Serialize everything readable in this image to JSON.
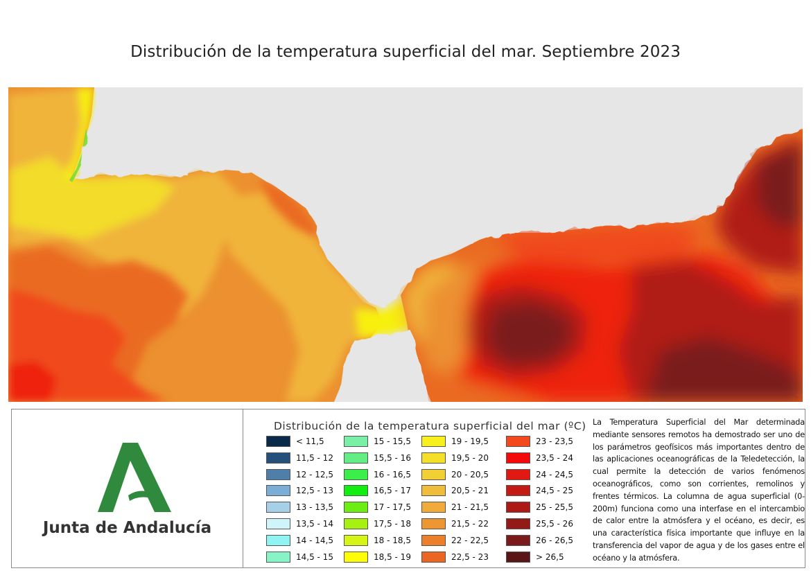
{
  "title": "Distribución de la temperatura superficial del mar. Septiembre 2023",
  "map": {
    "land_color": "#e6e6e6",
    "sea_colors": {
      "cool_yellow": "#f7f010",
      "yellow": "#f3dc2c",
      "light_orange": "#f0b43a",
      "orange": "#ec9030",
      "dark_orange": "#ea6a22",
      "red_orange": "#f04a1c",
      "red": "#ee2010",
      "deep_red": "#b01a14",
      "darkest_red": "#7a1a1a",
      "green_edge": "#6ed834"
    }
  },
  "logo": {
    "name": "Junta de Andalucía",
    "green": "#2f8a3e"
  },
  "legend": {
    "title": "Distribución de la temperatura superficial del mar (ºC)",
    "columns": [
      [
        {
          "label": "< 11,5",
          "color": "#0a2a4a"
        },
        {
          "label": "11,5 - 12",
          "color": "#24507a"
        },
        {
          "label": "12 - 12,5",
          "color": "#4f7ea8"
        },
        {
          "label": "12,5 - 13",
          "color": "#7aaed6"
        },
        {
          "label": "13 - 13,5",
          "color": "#a6cfe8"
        },
        {
          "label": "13,5 - 14",
          "color": "#cff5fb"
        },
        {
          "label": "14 - 14,5",
          "color": "#8ff4f2"
        },
        {
          "label": "14,5 - 15",
          "color": "#86f4c6"
        }
      ],
      [
        {
          "label": "15 - 15,5",
          "color": "#7af0a6"
        },
        {
          "label": "15,5 - 16",
          "color": "#62ee84"
        },
        {
          "label": "16 - 16,5",
          "color": "#3cee4a"
        },
        {
          "label": "16,5 - 17",
          "color": "#12ee12"
        },
        {
          "label": "17 - 17,5",
          "color": "#6cee12"
        },
        {
          "label": "17,5 - 18",
          "color": "#a6f012"
        },
        {
          "label": "18 - 18,5",
          "color": "#d6f416"
        },
        {
          "label": "18,5 - 19",
          "color": "#fdfd06"
        }
      ],
      [
        {
          "label": "19 - 19,5",
          "color": "#f8f01e"
        },
        {
          "label": "19,5 - 20",
          "color": "#f4e028"
        },
        {
          "label": "20 - 20,5",
          "color": "#f2cf34"
        },
        {
          "label": "20,5 - 21",
          "color": "#f0bd3a"
        },
        {
          "label": "21 - 21,5",
          "color": "#f0ab3a"
        },
        {
          "label": "21,5 - 22",
          "color": "#ee9632"
        },
        {
          "label": "22 - 22,5",
          "color": "#ec802a"
        },
        {
          "label": "22,5 - 23",
          "color": "#ea6622"
        }
      ],
      [
        {
          "label": "23 - 23,5",
          "color": "#f24a1c"
        },
        {
          "label": "23,5 - 24",
          "color": "#f40a0a"
        },
        {
          "label": "24 - 24,5",
          "color": "#e01a12"
        },
        {
          "label": "24,5 - 25",
          "color": "#c41a14"
        },
        {
          "label": "25 - 25,5",
          "color": "#ad1a16"
        },
        {
          "label": "25,5 - 26",
          "color": "#941a18"
        },
        {
          "label": "26 - 26,5",
          "color": "#7a1a1a"
        },
        {
          "label": "> 26,5",
          "color": "#5a1616"
        }
      ]
    ]
  },
  "description": "La Temperatura Superficial del Mar determinada mediante sensores remotos ha demostrado ser uno de los parámetros geofísicos más importantes dentro de las aplicaciones oceanográficas de la Teledetección, la cual permite la detección de varios fenómenos oceanográficos, como son corrientes, remolinos y frentes térmicos. La columna de agua superficial (0-200m) funciona como una interfase en el intercambio de calor entre la atmósfera y el océano, es decir, es una característica física importante que influye en la transferencia del vapor de agua y de los gases entre el océano y la atmósfera."
}
